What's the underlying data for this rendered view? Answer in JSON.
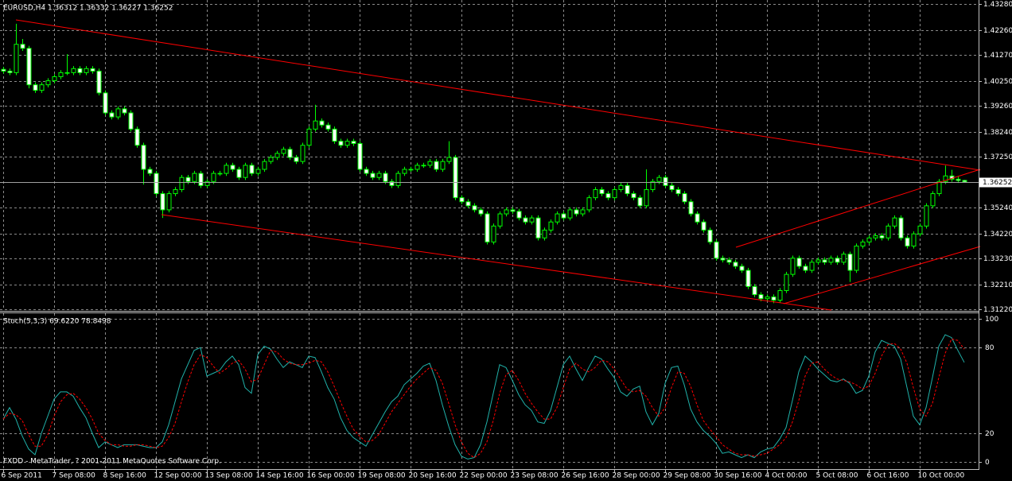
{
  "chart_data": [
    {
      "type": "candlestick",
      "title": "EURUSD,H4  1.36312 1.36332 1.36227 1.36252",
      "candle_color": "#00ff00",
      "bull_fill": "#000000",
      "bear_fill": "#ffffff",
      "grid": true,
      "xlim": [
        -0.5,
        153.25
      ],
      "xticks": [
        {
          "value": 0,
          "label": "6 Sep 2011"
        },
        {
          "value": 8,
          "label": "7 Sep 08:00"
        },
        {
          "value": 16,
          "label": "8 Sep 16:00"
        },
        {
          "value": 24,
          "label": "12 Sep 00:00"
        },
        {
          "value": 32,
          "label": "13 Sep 08:00"
        },
        {
          "value": 40,
          "label": "14 Sep 16:00"
        },
        {
          "value": 48,
          "label": "16 Sep 00:00"
        },
        {
          "value": 56,
          "label": "19 Sep 08:00"
        },
        {
          "value": 64,
          "label": "20 Sep 16:00"
        },
        {
          "value": 72,
          "label": "22 Sep 00:00"
        },
        {
          "value": 80,
          "label": "23 Sep 08:00"
        },
        {
          "value": 88,
          "label": "26 Sep 16:00"
        },
        {
          "value": 96,
          "label": "28 Sep 00:00"
        },
        {
          "value": 104,
          "label": "29 Sep 08:00"
        },
        {
          "value": 112,
          "label": "30 Sep 16:00"
        },
        {
          "value": 120,
          "label": "4 Oct 00:00"
        },
        {
          "value": 128,
          "label": "5 Oct 08:00"
        },
        {
          "value": 136,
          "label": "6 Oct 16:00"
        },
        {
          "value": 144,
          "label": "10 Oct 00:00"
        }
      ],
      "ylim": [
        1.3119,
        1.4344
      ],
      "yticks": [
        {
          "value": 1.4328,
          "label": "1.43280"
        },
        {
          "value": 1.4226,
          "label": "1.42260"
        },
        {
          "value": 1.4127,
          "label": "1.41270"
        },
        {
          "value": 1.4025,
          "label": "1.40250"
        },
        {
          "value": 1.3926,
          "label": "1.39260"
        },
        {
          "value": 1.3824,
          "label": "1.38240"
        },
        {
          "value": 1.3725,
          "label": "1.37250"
        },
        {
          "value": 1.3524,
          "label": "1.35240"
        },
        {
          "value": 1.3422,
          "label": "1.34220"
        },
        {
          "value": 1.3323,
          "label": "1.33230"
        },
        {
          "value": 1.3221,
          "label": "1.32210"
        },
        {
          "value": 1.3122,
          "label": "1.31220"
        }
      ],
      "current_price": {
        "value": 1.36252,
        "label": "1.36252"
      },
      "open": [
        1.407,
        1.4063,
        1.4057,
        1.4169,
        1.4153,
        1.4009,
        1.3987,
        1.4009,
        1.4025,
        1.4041,
        1.4057,
        1.4057,
        1.4073,
        1.4057,
        1.4073,
        1.4063,
        1.3977,
        1.3898,
        1.3882,
        1.3914,
        1.3898,
        1.3834,
        1.377,
        1.3675,
        1.3659,
        1.3579,
        1.3515,
        1.3579,
        1.3595,
        1.3643,
        1.3627,
        1.3659,
        1.3611,
        1.3627,
        1.3659,
        1.3659,
        1.3691,
        1.3675,
        1.3643,
        1.3691,
        1.3659,
        1.3675,
        1.3706,
        1.3722,
        1.3738,
        1.3754,
        1.3722,
        1.3706,
        1.377,
        1.3834,
        1.3866,
        1.385,
        1.3834,
        1.3786,
        1.377,
        1.3786,
        1.3777,
        1.3675,
        1.3659,
        1.3643,
        1.3659,
        1.3627,
        1.3611,
        1.3659,
        1.3675,
        1.3675,
        1.3691,
        1.3691,
        1.3706,
        1.3675,
        1.3706,
        1.3722,
        1.3563,
        1.3547,
        1.3531,
        1.3515,
        1.3499,
        1.3388,
        1.3451,
        1.3499,
        1.3515,
        1.3509,
        1.3483,
        1.3467,
        1.3483,
        1.3404,
        1.3435,
        1.3467,
        1.3499,
        1.3483,
        1.3515,
        1.3499,
        1.3515,
        1.3563,
        1.3595,
        1.3579,
        1.3563,
        1.3595,
        1.3611,
        1.3579,
        1.3563,
        1.3531,
        1.3595,
        1.3627,
        1.3643,
        1.3611,
        1.3595,
        1.3579,
        1.3547,
        1.3499,
        1.3467,
        1.3435,
        1.3388,
        1.3324,
        1.3317,
        1.3308,
        1.3292,
        1.3276,
        1.3212,
        1.318,
        1.3164,
        1.3171,
        1.3158,
        1.3196,
        1.326,
        1.3324,
        1.3292,
        1.3276,
        1.3308,
        1.3317,
        1.3308,
        1.3324,
        1.3308,
        1.334,
        1.3276,
        1.3372,
        1.3388,
        1.3404,
        1.3413,
        1.3404,
        1.3451,
        1.3483,
        1.3404,
        1.3372,
        1.342,
        1.3451,
        1.3531,
        1.3579,
        1.3627,
        1.3649,
        1.3636,
        1.36312
      ],
      "high": [
        1.408,
        1.4073,
        1.425,
        1.419,
        1.4163,
        1.4019,
        1.4019,
        1.4035,
        1.4051,
        1.4067,
        1.413,
        1.4083,
        1.4083,
        1.4083,
        1.4083,
        1.4073,
        1.3987,
        1.3908,
        1.3924,
        1.3924,
        1.3908,
        1.3844,
        1.378,
        1.3685,
        1.3669,
        1.3589,
        1.3589,
        1.3605,
        1.3653,
        1.3653,
        1.3669,
        1.3669,
        1.3637,
        1.3669,
        1.3669,
        1.3701,
        1.3701,
        1.3685,
        1.3701,
        1.3701,
        1.3685,
        1.3716,
        1.3732,
        1.3748,
        1.3764,
        1.3764,
        1.3732,
        1.378,
        1.3844,
        1.393,
        1.3876,
        1.386,
        1.3844,
        1.3796,
        1.3796,
        1.3796,
        1.3787,
        1.3685,
        1.3669,
        1.3669,
        1.3669,
        1.3637,
        1.3669,
        1.3685,
        1.3685,
        1.3701,
        1.3701,
        1.3716,
        1.3716,
        1.3716,
        1.3786,
        1.3732,
        1.3573,
        1.3557,
        1.3541,
        1.3525,
        1.3509,
        1.3461,
        1.3509,
        1.3525,
        1.3525,
        1.3519,
        1.3493,
        1.3493,
        1.3493,
        1.3445,
        1.3477,
        1.3509,
        1.3509,
        1.3525,
        1.3525,
        1.3525,
        1.3573,
        1.3605,
        1.3605,
        1.3589,
        1.3605,
        1.3621,
        1.3621,
        1.3589,
        1.3573,
        1.3675,
        1.3637,
        1.3653,
        1.3653,
        1.3621,
        1.3605,
        1.3589,
        1.3557,
        1.3509,
        1.3477,
        1.3445,
        1.3398,
        1.3334,
        1.3327,
        1.3318,
        1.3302,
        1.3286,
        1.3222,
        1.319,
        1.3181,
        1.3181,
        1.3206,
        1.327,
        1.3334,
        1.3334,
        1.3302,
        1.3318,
        1.3327,
        1.3327,
        1.3334,
        1.3334,
        1.335,
        1.335,
        1.3382,
        1.3398,
        1.3414,
        1.3423,
        1.3423,
        1.3461,
        1.3493,
        1.3493,
        1.3414,
        1.343,
        1.3461,
        1.3541,
        1.3589,
        1.3637,
        1.369,
        1.3673,
        1.3646,
        1.36332
      ],
      "low": [
        1.4053,
        1.4047,
        1.4047,
        1.4143,
        1.3995,
        1.3977,
        1.3977,
        1.3999,
        1.4015,
        1.4031,
        1.4047,
        1.4047,
        1.4047,
        1.4047,
        1.4053,
        1.3967,
        1.3888,
        1.3872,
        1.3872,
        1.3888,
        1.3824,
        1.376,
        1.3615,
        1.3649,
        1.3569,
        1.3483,
        1.3505,
        1.3569,
        1.3585,
        1.3617,
        1.3617,
        1.3601,
        1.3601,
        1.3617,
        1.3649,
        1.3649,
        1.3665,
        1.3633,
        1.3633,
        1.3649,
        1.3649,
        1.3665,
        1.3696,
        1.3712,
        1.3728,
        1.3712,
        1.3696,
        1.3696,
        1.376,
        1.3824,
        1.384,
        1.3824,
        1.3776,
        1.376,
        1.376,
        1.3767,
        1.3665,
        1.3649,
        1.3633,
        1.3633,
        1.3617,
        1.3601,
        1.3601,
        1.3649,
        1.3665,
        1.3665,
        1.3681,
        1.3681,
        1.3665,
        1.3665,
        1.3696,
        1.3553,
        1.3537,
        1.3521,
        1.3505,
        1.3489,
        1.3378,
        1.3378,
        1.3441,
        1.3489,
        1.3499,
        1.3473,
        1.3457,
        1.3457,
        1.3394,
        1.3394,
        1.3425,
        1.3457,
        1.3473,
        1.3473,
        1.3489,
        1.3489,
        1.3505,
        1.3553,
        1.3569,
        1.3553,
        1.3553,
        1.3585,
        1.3569,
        1.3553,
        1.3521,
        1.3521,
        1.3585,
        1.3617,
        1.3601,
        1.3585,
        1.3569,
        1.3537,
        1.3489,
        1.3457,
        1.3425,
        1.3378,
        1.3314,
        1.3307,
        1.3298,
        1.3282,
        1.3266,
        1.3202,
        1.317,
        1.3154,
        1.3154,
        1.3146,
        1.3148,
        1.3186,
        1.325,
        1.3282,
        1.3266,
        1.3266,
        1.3298,
        1.3298,
        1.3298,
        1.3298,
        1.3298,
        1.323,
        1.3266,
        1.3362,
        1.3378,
        1.3394,
        1.3394,
        1.3394,
        1.3441,
        1.3394,
        1.3362,
        1.3362,
        1.341,
        1.3441,
        1.3521,
        1.3569,
        1.3617,
        1.3626,
        1.3621,
        1.36227
      ],
      "close": [
        1.4063,
        1.4057,
        1.4169,
        1.4153,
        1.4009,
        1.3987,
        1.4009,
        1.4025,
        1.4041,
        1.4057,
        1.4057,
        1.4073,
        1.4057,
        1.4073,
        1.4063,
        1.3977,
        1.3898,
        1.3882,
        1.3914,
        1.3898,
        1.3834,
        1.377,
        1.3675,
        1.3659,
        1.3579,
        1.3515,
        1.3579,
        1.3595,
        1.3643,
        1.3627,
        1.3659,
        1.3611,
        1.3627,
        1.3659,
        1.3659,
        1.3691,
        1.3675,
        1.3643,
        1.3691,
        1.3659,
        1.3675,
        1.3706,
        1.3722,
        1.3738,
        1.3754,
        1.3722,
        1.3706,
        1.377,
        1.3834,
        1.3866,
        1.385,
        1.3834,
        1.3786,
        1.377,
        1.3786,
        1.3777,
        1.3675,
        1.3659,
        1.3643,
        1.3659,
        1.3627,
        1.3611,
        1.3659,
        1.3675,
        1.3675,
        1.3691,
        1.3691,
        1.3706,
        1.3675,
        1.3706,
        1.3722,
        1.3563,
        1.3547,
        1.3531,
        1.3515,
        1.3499,
        1.3388,
        1.3451,
        1.3499,
        1.3515,
        1.3509,
        1.3483,
        1.3467,
        1.3483,
        1.3404,
        1.3435,
        1.3467,
        1.3499,
        1.3483,
        1.3515,
        1.3499,
        1.3515,
        1.3563,
        1.3595,
        1.3579,
        1.3563,
        1.3595,
        1.3611,
        1.3579,
        1.3563,
        1.3531,
        1.3595,
        1.3627,
        1.3643,
        1.3611,
        1.3595,
        1.3579,
        1.3547,
        1.3499,
        1.3467,
        1.3435,
        1.3388,
        1.3324,
        1.3317,
        1.3308,
        1.3292,
        1.3276,
        1.3212,
        1.318,
        1.3164,
        1.3171,
        1.3158,
        1.3196,
        1.326,
        1.3324,
        1.3292,
        1.3276,
        1.3308,
        1.3317,
        1.3308,
        1.3324,
        1.3308,
        1.334,
        1.3276,
        1.3372,
        1.3388,
        1.3404,
        1.3413,
        1.3404,
        1.3451,
        1.3483,
        1.3404,
        1.3372,
        1.342,
        1.3451,
        1.3531,
        1.3579,
        1.3627,
        1.3649,
        1.3636,
        1.3631,
        1.36252
      ]
    },
    {
      "type": "line",
      "title": "Stoch(5,3,3) 69.6220 78.8498",
      "annotation": "FXDD - MetaTrader, ? 2001-2011 MetaQuotes Software Corp.",
      "grid": true,
      "ylim": [
        -5,
        104
      ],
      "yticks": [
        100,
        80,
        20,
        0
      ],
      "series": [
        {
          "color": "#20b2aa",
          "style": "solid",
          "values": [
            30,
            38,
            30,
            18,
            9,
            5,
            20,
            32,
            44,
            49,
            49,
            46,
            38,
            31,
            20,
            10,
            14,
            12,
            10,
            12,
            12,
            12,
            11,
            10,
            10,
            14,
            26,
            42,
            58,
            68,
            78,
            80,
            60,
            62,
            64,
            70,
            74,
            68,
            52,
            48,
            75,
            81,
            79,
            72,
            66,
            70,
            68,
            66,
            74,
            73,
            63,
            52,
            44,
            31,
            22,
            17,
            14,
            11,
            19,
            27,
            35,
            42,
            46,
            54,
            58,
            62,
            67,
            69,
            57,
            40,
            25,
            12,
            4,
            2,
            3,
            12,
            28,
            48,
            68,
            66,
            57,
            47,
            40,
            36,
            28,
            27,
            36,
            52,
            68,
            74,
            65,
            57,
            66,
            74,
            72,
            65,
            59,
            49,
            46,
            51,
            53,
            35,
            26,
            34,
            55,
            66,
            67,
            54,
            37,
            28,
            22,
            18,
            13,
            6,
            7,
            5,
            3,
            5,
            3,
            7,
            9,
            10,
            16,
            24,
            43,
            63,
            74,
            70,
            65,
            61,
            57,
            56,
            58,
            55,
            48,
            50,
            60,
            77,
            85,
            83,
            81,
            72,
            52,
            32,
            26,
            38,
            59,
            81,
            89,
            87,
            78,
            69.622
          ]
        },
        {
          "color": "#ff0000",
          "style": "dashed",
          "values": [
            30,
            34,
            33,
            29,
            19,
            11,
            11,
            19,
            32,
            42,
            47,
            48,
            44,
            38,
            30,
            20,
            15,
            12,
            12,
            11,
            11,
            12,
            12,
            11,
            10,
            11,
            17,
            27,
            42,
            56,
            68,
            75,
            73,
            67,
            62,
            65,
            69,
            71,
            65,
            56,
            58,
            68,
            78,
            77,
            72,
            69,
            68,
            68,
            69,
            71,
            70,
            63,
            53,
            42,
            32,
            23,
            18,
            14,
            15,
            19,
            27,
            35,
            41,
            47,
            53,
            58,
            62,
            66,
            64,
            55,
            41,
            26,
            14,
            6,
            3,
            6,
            14,
            29,
            48,
            61,
            64,
            57,
            48,
            41,
            35,
            30,
            30,
            38,
            52,
            65,
            69,
            65,
            63,
            66,
            71,
            70,
            65,
            58,
            51,
            49,
            50,
            46,
            38,
            32,
            38,
            52,
            63,
            62,
            53,
            40,
            29,
            23,
            18,
            12,
            9,
            6,
            5,
            5,
            4,
            5,
            6,
            9,
            12,
            17,
            28,
            43,
            60,
            69,
            70,
            65,
            61,
            58,
            57,
            56,
            54,
            51,
            53,
            62,
            74,
            82,
            83,
            79,
            69,
            52,
            37,
            32,
            41,
            59,
            76,
            86,
            85,
            78.8498
          ]
        }
      ]
    }
  ]
}
